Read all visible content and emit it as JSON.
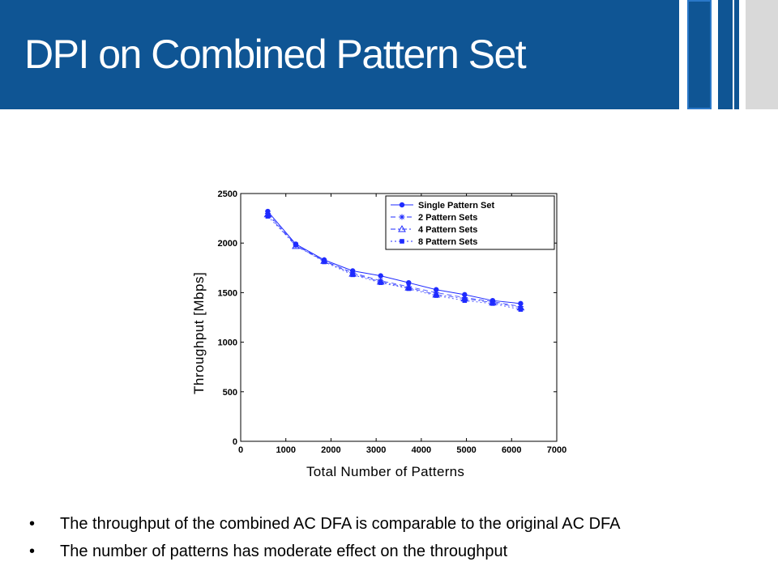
{
  "slide": {
    "title": "DPI on Combined Pattern Set",
    "bullets": [
      "The throughput of the combined AC DFA is comparable to the original AC DFA",
      "The number of patterns has moderate effect on the throughput"
    ]
  },
  "colors": {
    "header": "#0f5594",
    "accent_outline": "#2a78c8",
    "side_gray": "#d9d9d9",
    "series": "#1f2bff"
  },
  "chart_data": {
    "type": "line",
    "title": "",
    "xlabel": "Total Number of Patterns",
    "ylabel": "Throughput [Mbps]",
    "xlim": [
      0,
      7000
    ],
    "ylim": [
      0,
      2500
    ],
    "xticks": [
      "0",
      "1000",
      "2000",
      "3000",
      "4000",
      "5000",
      "6000",
      "7000"
    ],
    "yticks": [
      "0",
      "500",
      "1000",
      "1500",
      "2000",
      "2500"
    ],
    "grid": false,
    "legend_position": "top-right",
    "x": [
      600,
      1220,
      1850,
      2480,
      3100,
      3720,
      4330,
      4960,
      5580,
      6200
    ],
    "series": [
      {
        "name": "Single Pattern Set",
        "marker": "circle",
        "line": "solid",
        "values": [
          2320,
          1990,
          1830,
          1720,
          1670,
          1600,
          1530,
          1480,
          1420,
          1390
        ]
      },
      {
        "name": "2 Pattern Sets",
        "marker": "star",
        "line": "dashed",
        "values": [
          2300,
          1980,
          1820,
          1700,
          1620,
          1560,
          1500,
          1450,
          1410,
          1360
        ]
      },
      {
        "name": "4 Pattern Sets",
        "marker": "triangle",
        "line": "dashdot",
        "values": [
          2290,
          1970,
          1820,
          1690,
          1610,
          1550,
          1480,
          1440,
          1400,
          1350
        ]
      },
      {
        "name": "8 Pattern Sets",
        "marker": "square",
        "line": "dotted",
        "values": [
          2270,
          1980,
          1810,
          1680,
          1600,
          1540,
          1470,
          1420,
          1390,
          1330
        ]
      }
    ]
  }
}
